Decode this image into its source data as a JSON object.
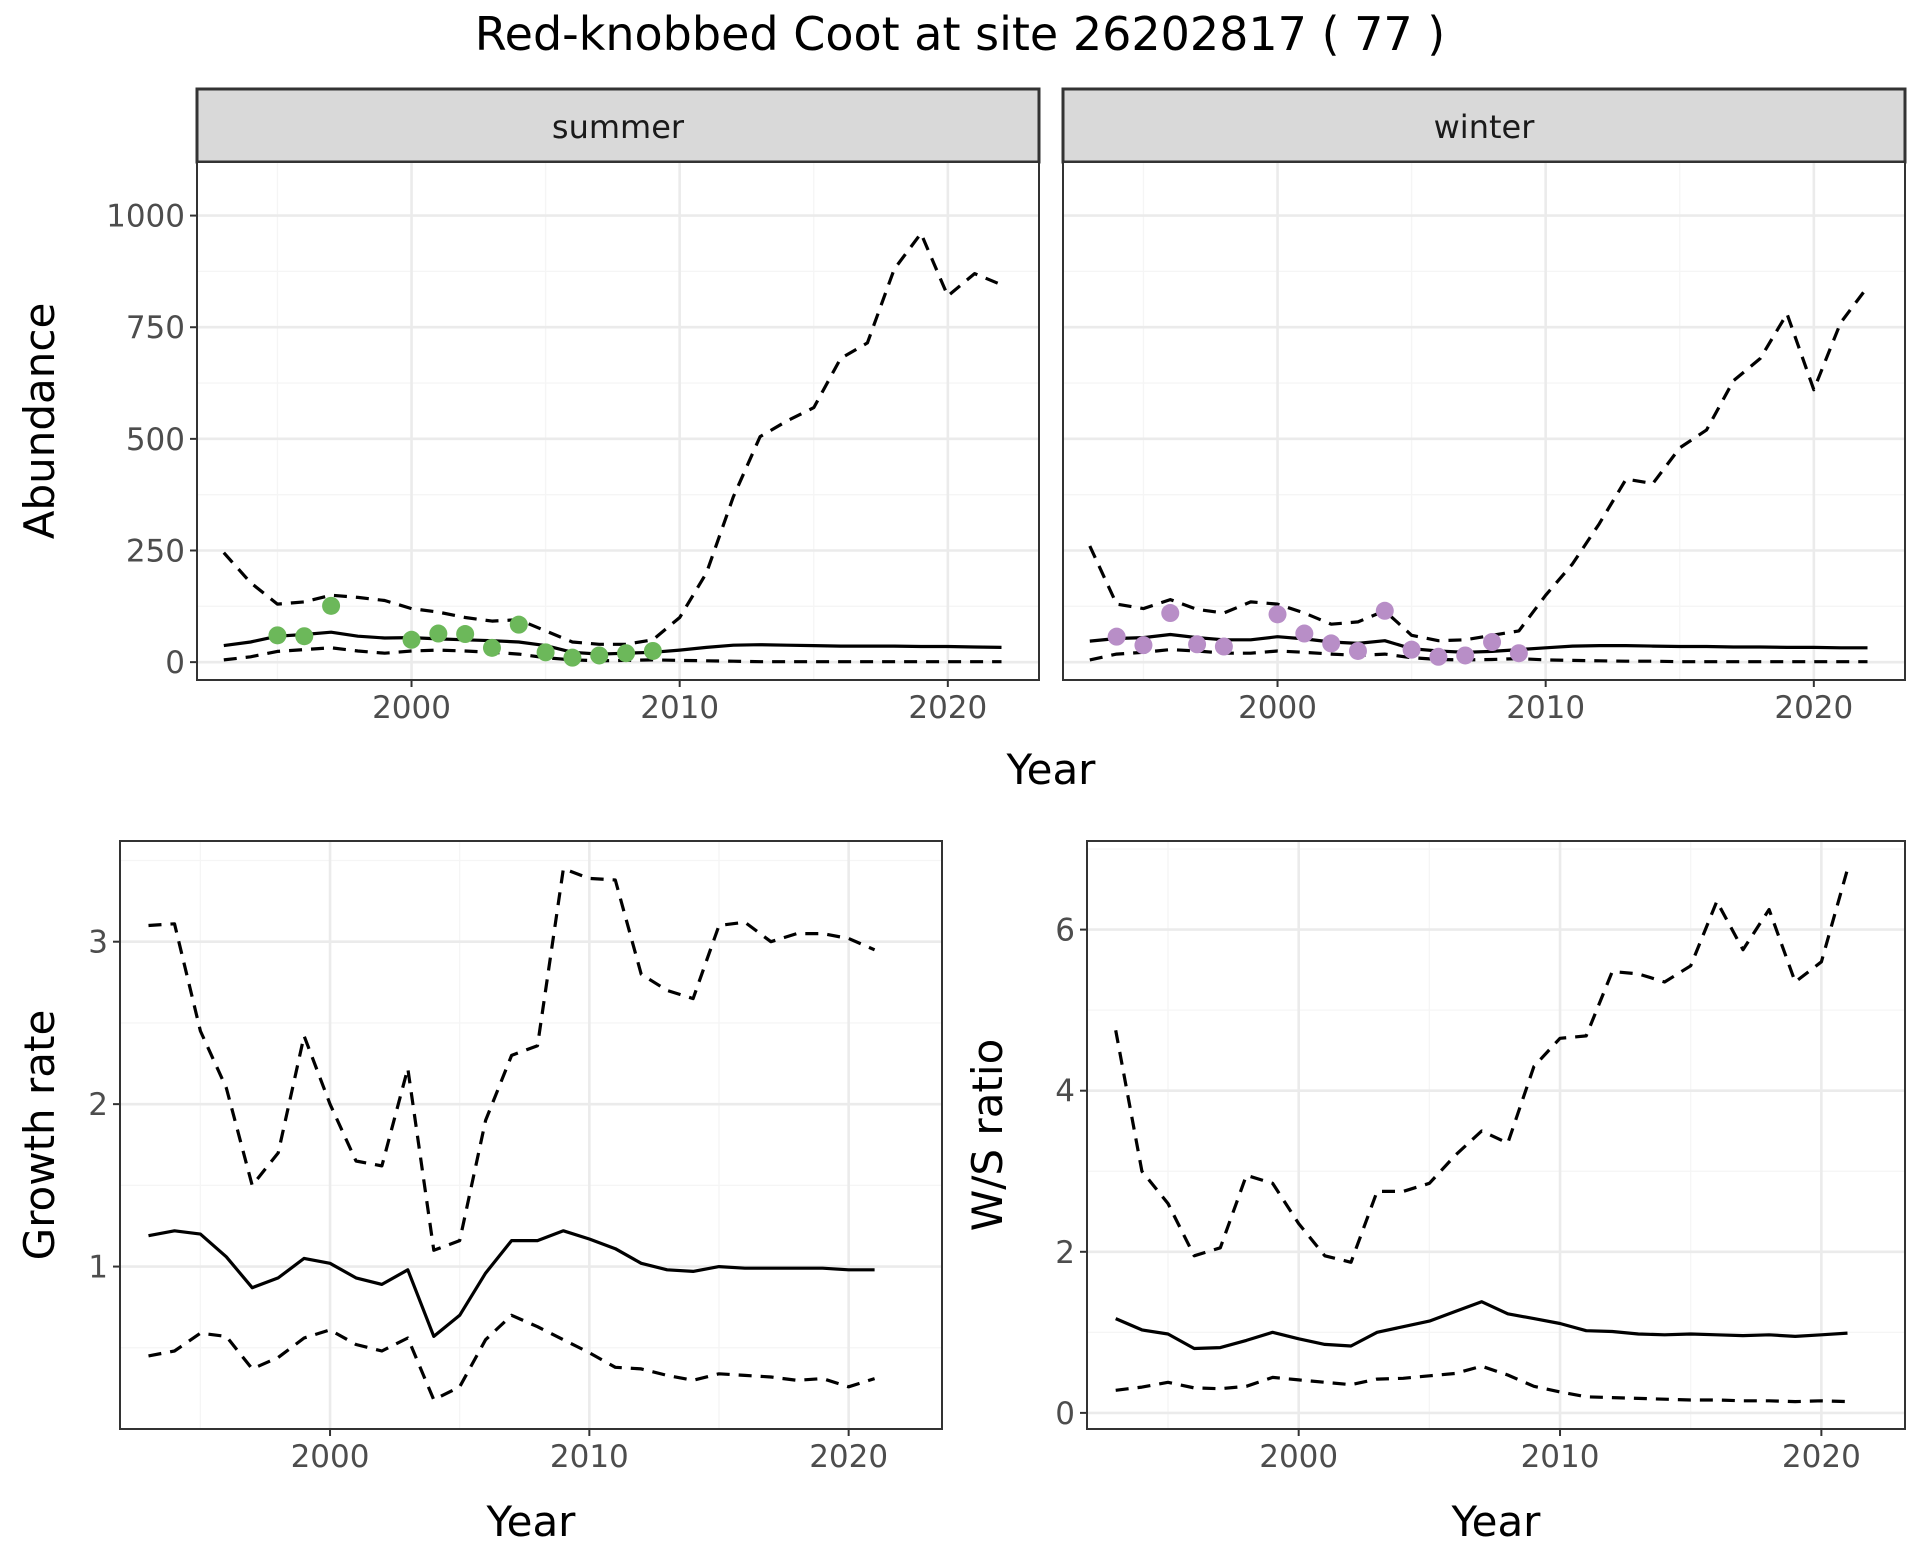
{
  "figure": {
    "title": "Red-knobbed Coot at site 26202817 ( 77 )"
  },
  "colors": {
    "summer_points": "#6cb85a",
    "winter_points": "#b88ec7",
    "lines": "#000000",
    "grid_major": "#ebebeb",
    "grid_minor": "#f5f5f5",
    "strip_fill": "#d9d9d9",
    "panel_border": "#333333"
  },
  "chart_data": [
    {
      "id": "abundance",
      "type": "line",
      "facets": [
        "summer",
        "winter"
      ],
      "xlabel": "Year",
      "ylabel": "Abundance",
      "xlim": [
        1992,
        2023.4
      ],
      "ylim": [
        -40,
        1120
      ],
      "xticks": [
        2000,
        2010,
        2020
      ],
      "yticks": [
        0,
        250,
        500,
        750,
        1000
      ],
      "grid": true,
      "panels": [
        {
          "facet": "summer",
          "point_color": "summer_points",
          "x": [
            1993,
            1994,
            1995,
            1996,
            1997,
            1998,
            1999,
            2000,
            2001,
            2002,
            2003,
            2004,
            2005,
            2006,
            2007,
            2008,
            2009,
            2010,
            2011,
            2012,
            2013,
            2014,
            2015,
            2016,
            2017,
            2018,
            2019,
            2020,
            2021,
            2022
          ],
          "estimate": [
            37,
            45,
            58,
            62,
            67,
            58,
            54,
            55,
            52,
            50,
            48,
            45,
            37,
            22,
            18,
            20,
            22,
            27,
            33,
            38,
            39,
            38,
            37,
            36,
            36,
            36,
            35,
            35,
            34,
            33
          ],
          "lower": [
            5,
            12,
            24,
            28,
            32,
            25,
            20,
            25,
            27,
            25,
            22,
            18,
            10,
            5,
            3,
            4,
            5,
            4,
            3,
            2,
            1,
            1,
            1,
            1,
            1,
            1,
            1,
            1,
            1,
            1
          ],
          "upper": [
            245,
            178,
            130,
            135,
            150,
            145,
            138,
            120,
            112,
            100,
            92,
            95,
            70,
            45,
            40,
            40,
            50,
            100,
            200,
            370,
            505,
            540,
            570,
            680,
            715,
            880,
            960,
            820,
            870,
            845
          ],
          "observed_x": [
            1995,
            1996,
            1997,
            2000,
            2001,
            2002,
            2003,
            2004,
            2005,
            2006,
            2007,
            2008,
            2009
          ],
          "observed_y": [
            60,
            58,
            126,
            50,
            64,
            63,
            32,
            84,
            22,
            10,
            15,
            20,
            25
          ]
        },
        {
          "facet": "winter",
          "point_color": "winter_points",
          "x": [
            1993,
            1994,
            1995,
            1996,
            1997,
            1998,
            1999,
            2000,
            2001,
            2002,
            2003,
            2004,
            2005,
            2006,
            2007,
            2008,
            2009,
            2010,
            2011,
            2012,
            2013,
            2014,
            2015,
            2016,
            2017,
            2018,
            2019,
            2020,
            2021,
            2022
          ],
          "estimate": [
            47,
            53,
            55,
            62,
            55,
            50,
            50,
            57,
            52,
            45,
            42,
            48,
            30,
            25,
            22,
            24,
            28,
            32,
            36,
            37,
            37,
            36,
            35,
            35,
            34,
            34,
            33,
            33,
            32,
            32
          ],
          "lower": [
            5,
            18,
            22,
            28,
            25,
            20,
            20,
            25,
            22,
            18,
            15,
            18,
            10,
            6,
            5,
            6,
            8,
            5,
            4,
            3,
            2,
            2,
            1,
            1,
            1,
            1,
            1,
            1,
            1,
            1
          ],
          "upper": [
            260,
            130,
            120,
            140,
            118,
            110,
            135,
            130,
            110,
            85,
            90,
            115,
            60,
            48,
            50,
            60,
            70,
            150,
            220,
            310,
            410,
            400,
            480,
            520,
            630,
            680,
            780,
            610,
            760,
            840
          ],
          "observed_x": [
            1994,
            1995,
            1996,
            1997,
            1998,
            2000,
            2001,
            2002,
            2003,
            2004,
            2005,
            2006,
            2007,
            2008,
            2009
          ],
          "observed_y": [
            57,
            38,
            110,
            40,
            35,
            107,
            64,
            42,
            25,
            115,
            28,
            12,
            15,
            45,
            20
          ]
        }
      ]
    },
    {
      "id": "growth",
      "type": "line",
      "xlabel": "Year",
      "ylabel": "Growth rate",
      "xlim": [
        1991.9,
        2023.6
      ],
      "ylim": [
        0.0,
        3.62
      ],
      "xticks": [
        2000,
        2010,
        2020
      ],
      "yticks": [
        1,
        2,
        3
      ],
      "grid": true,
      "x": [
        1993,
        1994,
        1995,
        1996,
        1997,
        1998,
        1999,
        2000,
        2001,
        2002,
        2003,
        2004,
        2005,
        2006,
        2007,
        2008,
        2009,
        2010,
        2011,
        2012,
        2013,
        2014,
        2015,
        2016,
        2017,
        2018,
        2019,
        2020,
        2021
      ],
      "estimate": [
        1.19,
        1.22,
        1.2,
        1.06,
        0.87,
        0.93,
        1.05,
        1.02,
        0.93,
        0.89,
        0.98,
        0.57,
        0.7,
        0.96,
        1.16,
        1.16,
        1.22,
        1.17,
        1.11,
        1.02,
        0.98,
        0.97,
        1.0,
        0.99,
        0.99,
        0.99,
        0.99,
        0.98,
        0.98
      ],
      "lower": [
        0.45,
        0.48,
        0.59,
        0.57,
        0.37,
        0.44,
        0.56,
        0.61,
        0.52,
        0.48,
        0.56,
        0.18,
        0.26,
        0.55,
        0.7,
        0.63,
        0.55,
        0.47,
        0.38,
        0.37,
        0.33,
        0.3,
        0.34,
        0.33,
        0.32,
        0.3,
        0.31,
        0.26,
        0.31
      ],
      "upper": [
        3.1,
        3.11,
        2.45,
        2.1,
        1.5,
        1.7,
        2.42,
        2.0,
        1.65,
        1.62,
        2.22,
        1.1,
        1.16,
        1.9,
        2.3,
        2.36,
        3.45,
        3.39,
        3.38,
        2.8,
        2.7,
        2.65,
        3.1,
        3.12,
        3.0,
        3.05,
        3.05,
        3.02,
        2.95
      ]
    },
    {
      "id": "ws_ratio",
      "type": "line",
      "xlabel": "Year",
      "ylabel": "W/S ratio",
      "xlim": [
        1991.9,
        2023.2
      ],
      "ylim": [
        -0.2,
        7.1
      ],
      "xticks": [
        2000,
        2010,
        2020
      ],
      "yticks": [
        0,
        2,
        4,
        6
      ],
      "grid": true,
      "x": [
        1993,
        1994,
        1995,
        1996,
        1997,
        1998,
        1999,
        2000,
        2001,
        2002,
        2003,
        2004,
        2005,
        2006,
        2007,
        2008,
        2009,
        2010,
        2011,
        2012,
        2013,
        2014,
        2015,
        2016,
        2017,
        2018,
        2019,
        2020,
        2021
      ],
      "estimate": [
        1.17,
        1.03,
        0.98,
        0.8,
        0.81,
        0.9,
        1.0,
        0.92,
        0.85,
        0.83,
        1.0,
        1.07,
        1.14,
        1.26,
        1.38,
        1.23,
        1.17,
        1.11,
        1.02,
        1.01,
        0.98,
        0.97,
        0.98,
        0.97,
        0.96,
        0.97,
        0.95,
        0.97,
        0.99
      ],
      "lower": [
        0.28,
        0.32,
        0.38,
        0.31,
        0.3,
        0.33,
        0.44,
        0.41,
        0.38,
        0.35,
        0.42,
        0.43,
        0.46,
        0.49,
        0.58,
        0.47,
        0.33,
        0.26,
        0.2,
        0.19,
        0.18,
        0.17,
        0.16,
        0.16,
        0.15,
        0.15,
        0.14,
        0.15,
        0.14
      ],
      "upper": [
        4.75,
        3.0,
        2.6,
        1.95,
        2.05,
        2.95,
        2.85,
        2.35,
        1.95,
        1.87,
        2.75,
        2.75,
        2.85,
        3.2,
        3.5,
        3.35,
        4.3,
        4.65,
        4.68,
        5.48,
        5.45,
        5.35,
        5.55,
        6.35,
        5.75,
        6.25,
        5.35,
        5.6,
        6.75
      ]
    }
  ]
}
